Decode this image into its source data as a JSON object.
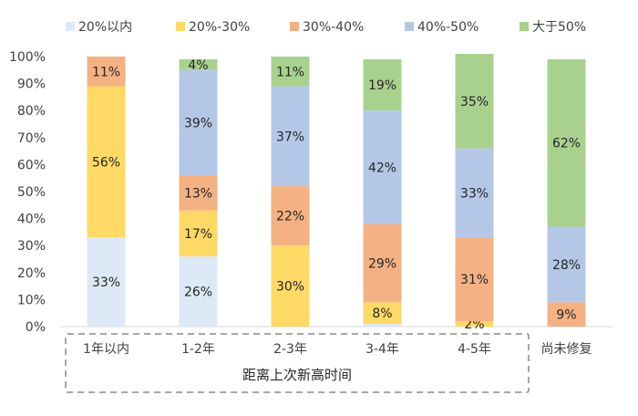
{
  "chart_data": {
    "type": "bar",
    "stacked": true,
    "normalized": true,
    "categories": [
      "1年以内",
      "1-2年",
      "2-3年",
      "3-4年",
      "4-5年",
      "尚未修复"
    ],
    "series": [
      {
        "name": "20%以内",
        "color": "#dde9f6",
        "values": [
          33,
          26,
          0,
          1,
          0,
          0
        ],
        "labels": [
          "33%",
          "26%",
          "",
          "",
          "",
          ""
        ]
      },
      {
        "name": "20%-30%",
        "color": "#ffd966",
        "values": [
          56,
          17,
          30,
          8,
          2,
          0
        ],
        "labels": [
          "56%",
          "17%",
          "30%",
          "8%",
          "2%",
          ""
        ]
      },
      {
        "name": "30%-40%",
        "color": "#f4b183",
        "values": [
          11,
          13,
          22,
          29,
          31,
          9
        ],
        "labels": [
          "11%",
          "13%",
          "22%",
          "29%",
          "31%",
          "9%"
        ]
      },
      {
        "name": "40%-50%",
        "color": "#b4c7e7",
        "values": [
          0,
          39,
          37,
          42,
          33,
          28
        ],
        "labels": [
          "",
          "39%",
          "37%",
          "42%",
          "33%",
          "28%"
        ]
      },
      {
        "name": "大于50%",
        "color": "#a9d18e",
        "values": [
          0,
          4,
          11,
          19,
          35,
          62
        ],
        "labels": [
          "",
          "4%",
          "11%",
          "19%",
          "35%",
          "62%"
        ]
      }
    ],
    "yticks": [
      "0%",
      "10%",
      "20%",
      "30%",
      "40%",
      "50%",
      "60%",
      "70%",
      "80%",
      "90%",
      "100%"
    ],
    "ylim": [
      0,
      100
    ],
    "legend_position": "top",
    "group_label": "距离上次新高时间",
    "grid": false
  }
}
